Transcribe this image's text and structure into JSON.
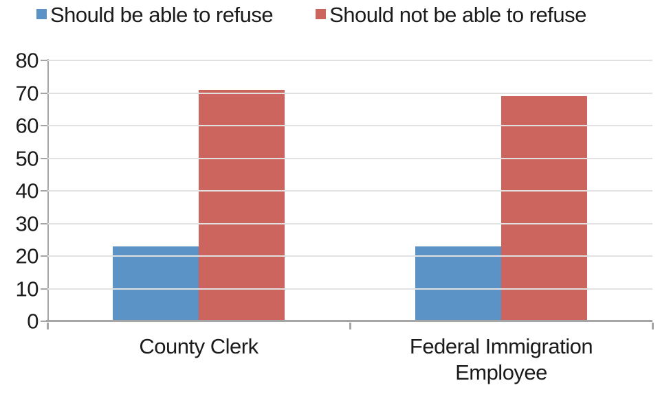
{
  "chart_data": {
    "type": "bar",
    "categories": [
      "County Clerk",
      "Federal Immigration Employee"
    ],
    "series": [
      {
        "name": "Should be able to refuse",
        "color": "#5C93C7",
        "values": [
          23,
          23
        ]
      },
      {
        "name": "Should not be able to refuse",
        "color": "#CB655E",
        "values": [
          71,
          69
        ]
      }
    ],
    "title": "",
    "xlabel": "",
    "ylabel": "",
    "ylim": [
      0,
      80
    ],
    "yticks": [
      0,
      10,
      20,
      30,
      40,
      50,
      60,
      70,
      80
    ],
    "grid": "horizontal",
    "legend_position": "top",
    "styles": {
      "axis_color": "#A5A5A5",
      "gridline_color": "#E1E1E1",
      "text_color": "#1b1b1b"
    }
  }
}
